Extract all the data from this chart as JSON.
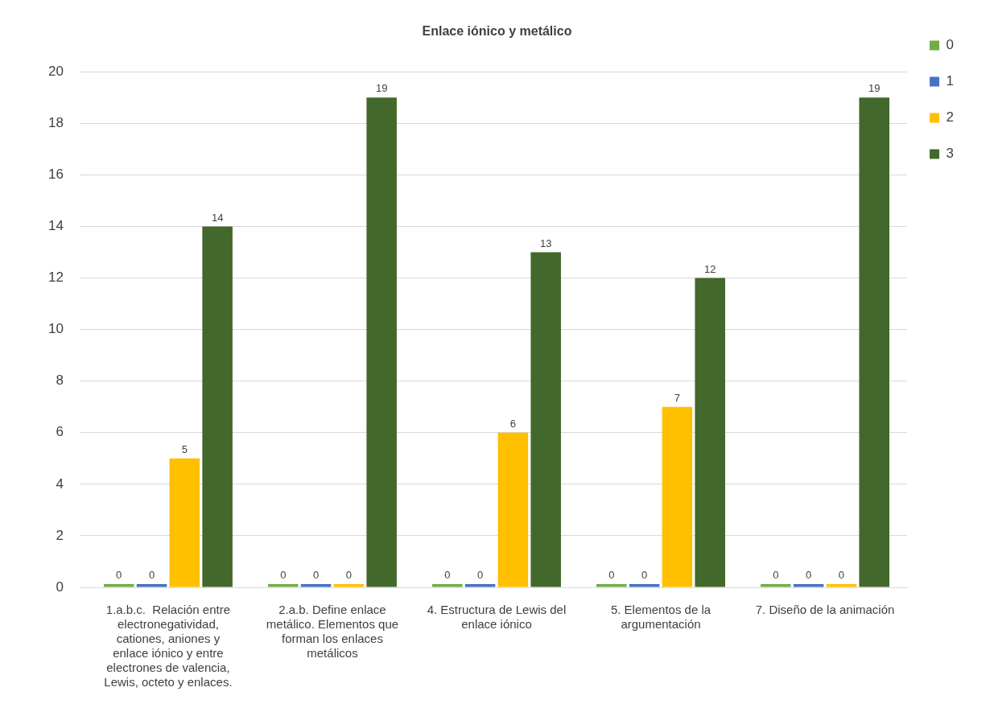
{
  "chart_data": {
    "type": "bar",
    "title": "Enlace iónico y metálico",
    "categories": [
      "1.a.b.c.  Relación entre electronegatividad, cationes, aniones y enlace iónico y entre electrones de valencia, Lewis, octeto y enlaces.",
      "2.a.b. Define enlace metálico. Elementos que forman los enlaces metálicos",
      "4. Estructura de Lewis del enlace iónico",
      "5. Elementos de la argumentación",
      "7. Diseño de la animación"
    ],
    "series": [
      {
        "name": "0",
        "color": "#70ad47",
        "values": [
          0,
          0,
          0,
          0,
          0
        ]
      },
      {
        "name": "1",
        "color": "#4472c4",
        "values": [
          0,
          0,
          0,
          0,
          0
        ]
      },
      {
        "name": "2",
        "color": "#ffc000",
        "values": [
          5,
          0,
          6,
          7,
          0
        ]
      },
      {
        "name": "3",
        "color": "#43682b",
        "values": [
          14,
          19,
          13,
          12,
          19
        ]
      }
    ],
    "ylim": [
      0,
      20
    ],
    "yticks": [
      0,
      2,
      4,
      6,
      8,
      10,
      12,
      14,
      16,
      18,
      20
    ],
    "grid": "y",
    "legend": "right",
    "data_labels": true
  }
}
